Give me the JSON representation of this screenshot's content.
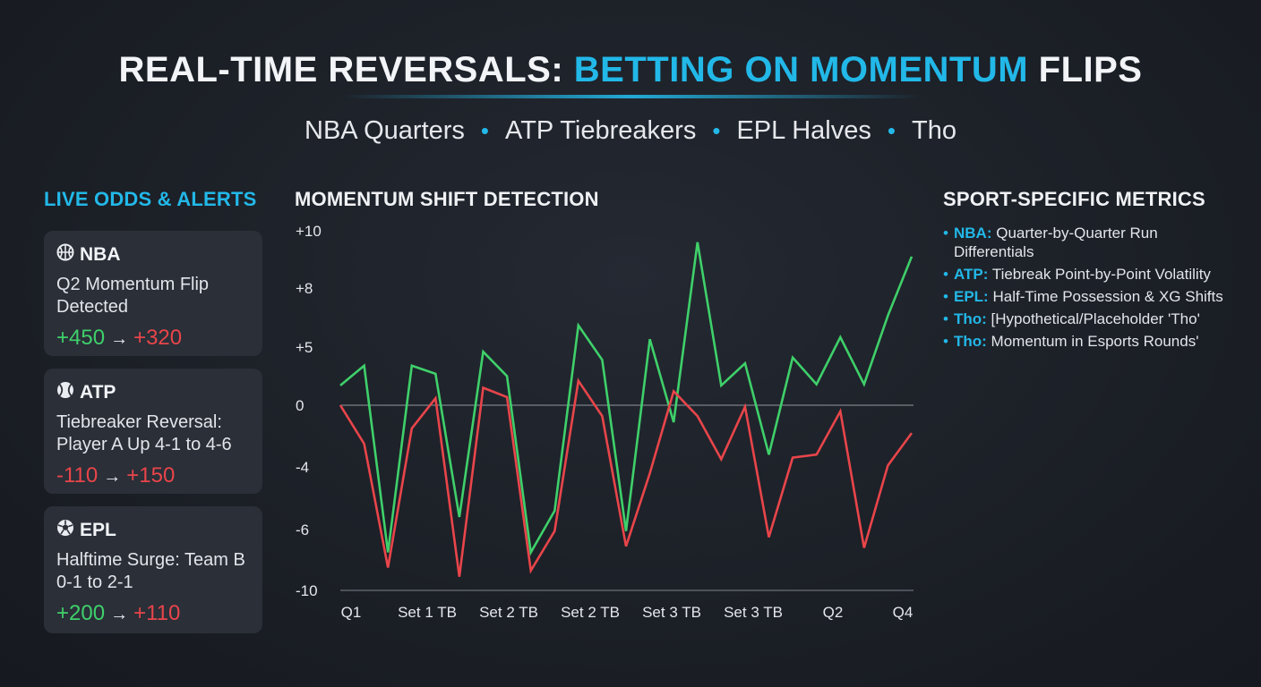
{
  "header": {
    "title_part1": "REAL-TIME REVERSALS: ",
    "title_accent": "BETTING ON MOMENTUM",
    "title_part2": " FLIPS",
    "subtitle_items": [
      "NBA Quarters",
      "ATP Tiebreakers",
      "EPL Halves",
      "Tho"
    ]
  },
  "left_panel": {
    "heading": "LIVE ODDS & ALERTS",
    "cards": [
      {
        "icon": "basketball-icon",
        "sport": "NBA",
        "desc": "Q2 Momentum Flip Detected",
        "odds_from": "+450",
        "odds_to": "+320"
      },
      {
        "icon": "tennis-ball-icon",
        "sport": "ATP",
        "desc": "Tiebreaker Reversal: Player A Up 4-1 to 4-6",
        "odds_from": "-110",
        "odds_to": "+150"
      },
      {
        "icon": "soccer-ball-icon",
        "sport": "EPL",
        "desc": "Halftime Surge: Team B 0-1 to 2-1",
        "odds_from": "+200",
        "odds_to": "+110"
      }
    ],
    "colors": {
      "positive": "#3fd06a",
      "negative": "#e8454a"
    }
  },
  "chart_heading": "MOMENTUM SHIFT DETECTION",
  "chart_data": {
    "type": "line",
    "title": "MOMENTUM SHIFT DETECTION",
    "xlabel": "",
    "ylabel": "",
    "y_ticks": [
      "+10",
      "+8",
      "+5",
      "0",
      "-4",
      "-6",
      "-10"
    ],
    "x_tick_labels": [
      "Q1",
      "Set 1 TB",
      "Set 2 TB",
      "Set 2 TB",
      "Set 3 TB",
      "Set 3 TB",
      "Q2",
      "Q4"
    ],
    "zero_line": true,
    "grid": false,
    "series": [
      {
        "color": "#3fd06a",
        "values": [
          1.7,
          3.4,
          -7.5,
          3.4,
          2.7,
          -5.6,
          4.6,
          2.5,
          -7.5,
          -5.4,
          6.1,
          3.9,
          -6.1,
          5.4,
          -1.1,
          9.6,
          1.7,
          3.6,
          -3.2,
          4.1,
          1.8,
          5.5,
          1.8,
          6.6,
          9.1
        ]
      },
      {
        "color": "#e8454a",
        "values": [
          0,
          -2.5,
          -8.5,
          -1.5,
          0.6,
          -9.1,
          1.5,
          0.7,
          -8.7,
          -6.1,
          2.1,
          -0.7,
          -7.1,
          -4.2,
          1.2,
          -0.7,
          -3.5,
          -0.1,
          -6.5,
          -3.4,
          -3.2,
          -0.4,
          -7.2,
          -3.9,
          -1.8
        ]
      }
    ]
  },
  "right_panel": {
    "heading": "SPORT-SPECIFIC METRICS",
    "items": [
      {
        "key": "NBA:",
        "text": " Quarter-by-Quarter Run Differentials"
      },
      {
        "key": "ATP:",
        "text": " Tiebreak Point-by-Point Volatility"
      },
      {
        "key": "EPL:",
        "text": " Half-Time Possession & XG Shifts"
      },
      {
        "key": "Tho:",
        "text": " [Hypothetical/Placeholder 'Tho'"
      },
      {
        "key": "Tho:",
        "text": " Momentum in Esports Rounds'"
      }
    ]
  }
}
